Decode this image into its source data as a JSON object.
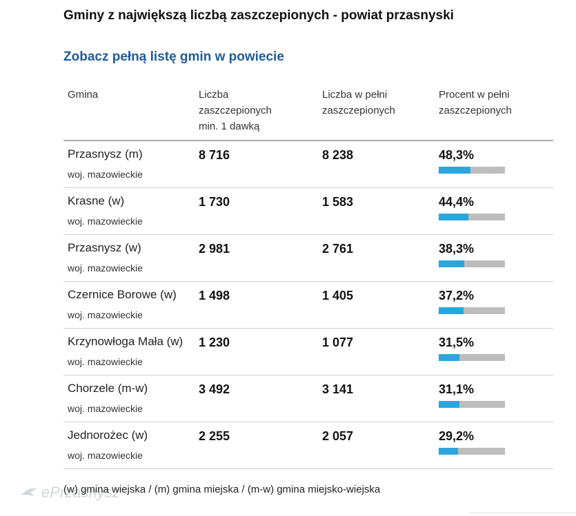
{
  "header": {
    "title": "Gminy z największą liczbą zaszczepionych - powiat przasnyski",
    "link_label": "Zobacz pełną listę gmin w powiecie"
  },
  "table": {
    "columns": {
      "gmina": "Gmina",
      "min1": "Liczba zaszczepionych min. 1 dawką",
      "full": "Liczba w pełni zaszczepionych",
      "pct": "Procent w pełni zaszczepionych"
    },
    "rows": [
      {
        "name": "Przasnysz (m)",
        "region": "woj. mazowieckie",
        "min1": "8 716",
        "full": "8 238",
        "pct_label": "48,3%",
        "pct": 48.3
      },
      {
        "name": "Krasne (w)",
        "region": "woj. mazowieckie",
        "min1": "1 730",
        "full": "1 583",
        "pct_label": "44,4%",
        "pct": 44.4
      },
      {
        "name": "Przasnysz (w)",
        "region": "woj. mazowieckie",
        "min1": "2 981",
        "full": "2 761",
        "pct_label": "38,3%",
        "pct": 38.3
      },
      {
        "name": "Czernice Borowe (w)",
        "region": "woj. mazowieckie",
        "min1": "1 498",
        "full": "1 405",
        "pct_label": "37,2%",
        "pct": 37.2
      },
      {
        "name": "Krzynowłoga Mała (w)",
        "region": "woj. mazowieckie",
        "min1": "1 230",
        "full": "1 077",
        "pct_label": "31,5%",
        "pct": 31.5
      },
      {
        "name": "Chorzele (m-w)",
        "region": "woj. mazowieckie",
        "min1": "3 492",
        "full": "3 141",
        "pct_label": "31,1%",
        "pct": 31.1
      },
      {
        "name": "Jednorożec (w)",
        "region": "woj. mazowieckie",
        "min1": "2 255",
        "full": "2 057",
        "pct_label": "29,2%",
        "pct": 29.2
      }
    ]
  },
  "footnote": "(w) gmina wiejska / (m) gmina miejska / (m-w) gmina miejsko-wiejska",
  "watermark": "ePrzasnysz",
  "colors": {
    "link": "#1f5c9a",
    "bar_fill": "#2aa6dc",
    "bar_track": "#bdbdbd"
  }
}
